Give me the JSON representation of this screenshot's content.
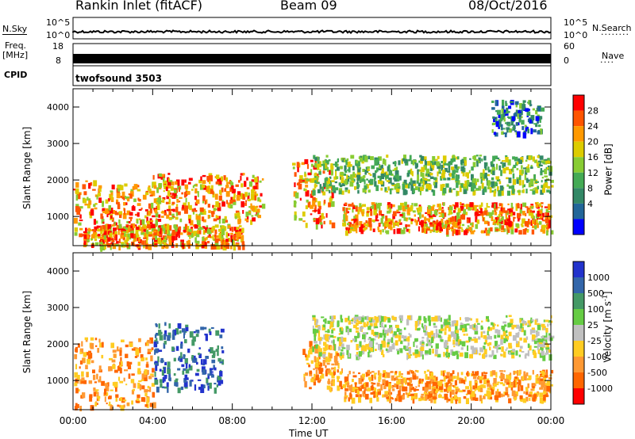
{
  "header": {
    "station": "Rankin Inlet (fitACF)",
    "beam": "Beam 09",
    "date": "08/Oct/2016"
  },
  "status_panels": {
    "nsky_label": "N.Sky",
    "nsky_ticks": [
      "10^5",
      "10^0"
    ],
    "nsearch_label": "N.Search",
    "nsearch_ticks": [
      "10^5",
      "10^0"
    ],
    "freq_label": "Freq.",
    "freq_unit": "[MHz]",
    "freq_ticks": [
      "18",
      "8"
    ],
    "nave_label": "Nave",
    "nave_ticks": [
      "60",
      "0"
    ],
    "cpid_label": "CPID",
    "cpid_value": "twofsound 3503"
  },
  "chart_data": [
    {
      "type": "heatmap",
      "title": "",
      "ylabel": "Slant Range [km]",
      "xlabel": "",
      "ylim": [
        200,
        4500
      ],
      "yticks": [
        1000,
        2000,
        3000,
        4000
      ],
      "colorbar": {
        "label": "Power [dB]",
        "ticks": [
          "28",
          "24",
          "20",
          "16",
          "12",
          "8",
          "4"
        ],
        "colors": [
          "#ff0000",
          "#ff5500",
          "#ff9900",
          "#ddcc00",
          "#88cc33",
          "#44aa55",
          "#338866",
          "#226699",
          "#0000ff"
        ]
      },
      "regions": [
        {
          "t": [
            0.0,
            4.0
          ],
          "r": [
            500,
            2000
          ],
          "level": "high"
        },
        {
          "t": [
            0.5,
            8.5
          ],
          "r": [
            200,
            800
          ],
          "level": "high"
        },
        {
          "t": [
            4.0,
            9.5
          ],
          "r": [
            900,
            2200
          ],
          "level": "high"
        },
        {
          "t": [
            11.0,
            13.0
          ],
          "r": [
            800,
            2600
          ],
          "level": "high"
        },
        {
          "t": [
            13.5,
            24.0
          ],
          "r": [
            600,
            1400
          ],
          "level": "high"
        },
        {
          "t": [
            12.0,
            24.0
          ],
          "r": [
            1700,
            2700
          ],
          "level": "medium"
        },
        {
          "t": [
            21.0,
            23.5
          ],
          "r": [
            3300,
            4200
          ],
          "level": "low"
        }
      ]
    },
    {
      "type": "heatmap",
      "title": "",
      "ylabel": "Slant Range [km]",
      "xlabel": "Time UT",
      "ylim": [
        200,
        4500
      ],
      "yticks": [
        1000,
        2000,
        3000,
        4000
      ],
      "xticks": [
        "00:00",
        "04:00",
        "08:00",
        "12:00",
        "16:00",
        "20:00",
        "00:00"
      ],
      "colorbar": {
        "label": "Velocity [m s^-1]",
        "ticks": [
          "1000",
          "500",
          "100",
          "25",
          "-25",
          "-100",
          "-500",
          "-1000"
        ],
        "colors": [
          "#2233cc",
          "#3366aa",
          "#449966",
          "#66cc44",
          "#c0c0c0",
          "#ffcc22",
          "#ff9933",
          "#ff6600",
          "#ff0000"
        ]
      },
      "regions": [
        {
          "t": [
            0.0,
            4.0
          ],
          "r": [
            300,
            2200
          ],
          "value": "negative"
        },
        {
          "t": [
            4.0,
            7.5
          ],
          "r": [
            800,
            2600
          ],
          "value": "positive"
        },
        {
          "t": [
            11.5,
            13.5
          ],
          "r": [
            800,
            2100
          ],
          "value": "negative"
        },
        {
          "t": [
            13.5,
            24.0
          ],
          "r": [
            500,
            1300
          ],
          "value": "negative"
        },
        {
          "t": [
            12.0,
            24.0
          ],
          "r": [
            1700,
            2800
          ],
          "value": "low"
        }
      ]
    }
  ]
}
